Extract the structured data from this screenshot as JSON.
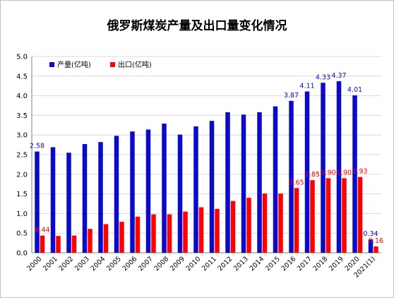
{
  "chart_data": {
    "type": "bar",
    "title": "俄罗斯煤炭产量及出口量变化情况",
    "categories": [
      "2000",
      "2001",
      "2002",
      "2003",
      "2004",
      "2005",
      "2006",
      "2007",
      "2008",
      "2009",
      "2010",
      "2011",
      "2012",
      "2013",
      "2014",
      "2015",
      "2016",
      "2017",
      "2018",
      "2019",
      "2020",
      "2021(1)"
    ],
    "series": [
      {
        "name": "产量(亿吨)",
        "color": "#0a0ac8",
        "values": [
          2.58,
          2.69,
          2.55,
          2.77,
          2.82,
          2.98,
          3.09,
          3.14,
          3.29,
          3.01,
          3.22,
          3.36,
          3.58,
          3.52,
          3.58,
          3.73,
          3.87,
          4.11,
          4.33,
          4.37,
          4.01,
          0.34
        ]
      },
      {
        "name": "出口(亿吨)",
        "color": "#ff0000",
        "values": [
          0.44,
          0.43,
          0.44,
          0.61,
          0.73,
          0.79,
          0.92,
          0.98,
          0.98,
          1.05,
          1.16,
          1.12,
          1.32,
          1.4,
          1.51,
          1.51,
          1.65,
          1.85,
          1.9,
          1.9,
          1.93,
          0.16
        ]
      }
    ],
    "data_labels": {
      "产量(亿吨)": {
        "0": "2.58",
        "16": "3.87",
        "17": "4.11",
        "18": "4.33",
        "19": "4.37",
        "20": "4.01",
        "21": "0.34"
      },
      "出口(亿吨)": {
        "0": "0.44",
        "16": "1.65",
        "17": "1.85",
        "18": "1.90",
        "19": "1.90",
        "20": "1.93",
        "21": "0.16"
      }
    },
    "y_ticks": [
      "0.0",
      "0.5",
      "1.0",
      "1.5",
      "2.0",
      "2.5",
      "3.0",
      "3.5",
      "4.0",
      "4.5",
      "5.0"
    ],
    "ylim": [
      0,
      5
    ],
    "grid": true,
    "legend_position": "top-left"
  }
}
